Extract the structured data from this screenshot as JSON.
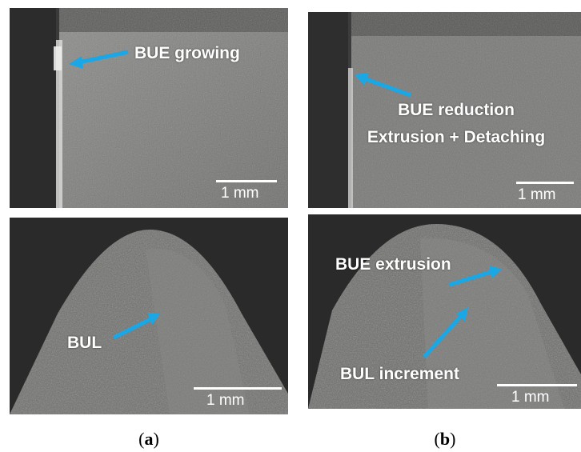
{
  "panels": {
    "a_top": {
      "label": "BUE growing",
      "scale": "1 mm"
    },
    "b_top": {
      "label_line1": "BUE reduction",
      "label_line2": "Extrusion + Detaching",
      "scale": "1 mm"
    },
    "a_bottom": {
      "label": "BUL",
      "scale": "1 mm"
    },
    "b_bottom": {
      "label_extrusion": "BUE extrusion",
      "label_increment": "BUL increment",
      "scale": "1 mm"
    }
  },
  "captions": {
    "a": {
      "open": "(",
      "letter": "a",
      "close": ")"
    },
    "b": {
      "open": "(",
      "letter": "b",
      "close": ")"
    }
  },
  "colors": {
    "arrow": "#1aa7e6",
    "label": "#ffffff",
    "background": "#ffffff"
  }
}
